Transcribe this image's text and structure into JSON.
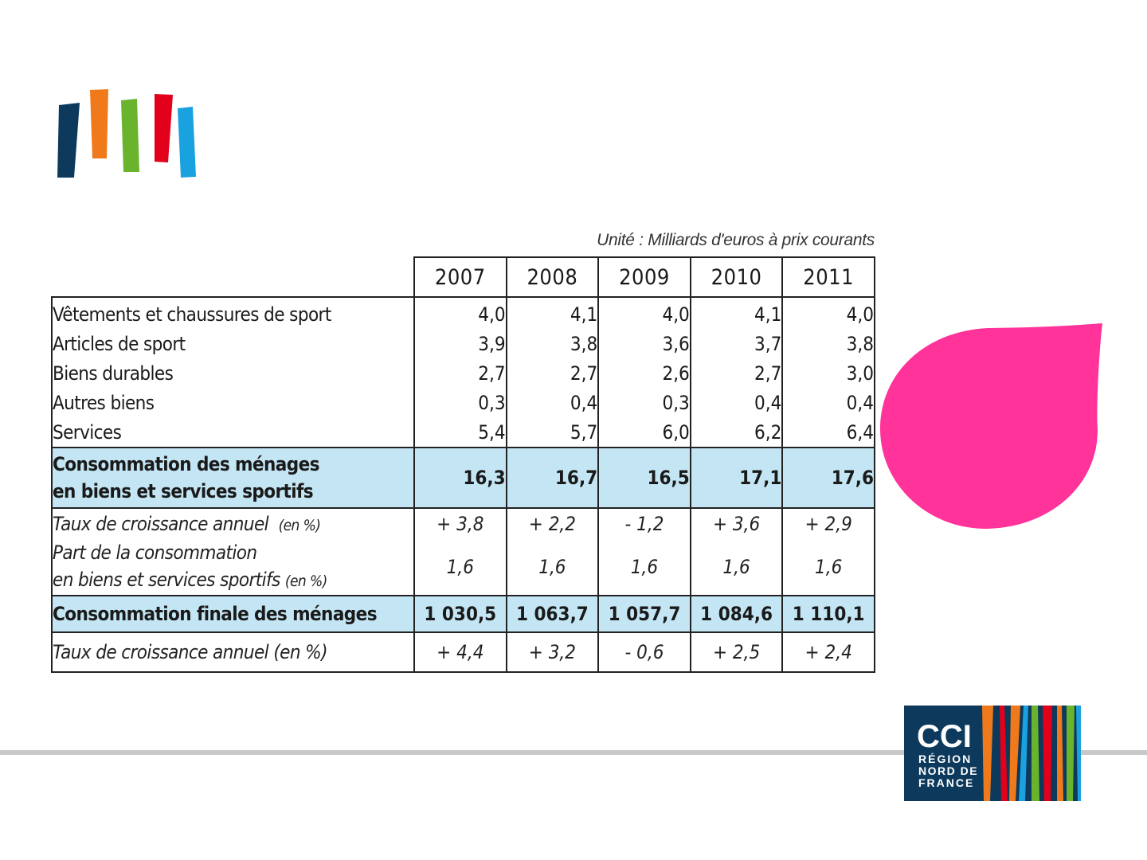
{
  "colors": {
    "logo_bars": [
      "#0d3a5c",
      "#f07a1b",
      "#6ab42d",
      "#e2001a",
      "#1aa1df"
    ],
    "petal": "#ff3399",
    "highlight_row": "#c4e6f4",
    "divider": "#c9c9c9",
    "cci_background": "#0d3a5c"
  },
  "cci_logo": {
    "line1": "CCI",
    "line2": "RÉGION",
    "line3": "NORD DE",
    "line4": "FRANCE"
  },
  "table": {
    "unit_note": "Unité  :  Milliards d'euros à prix courants",
    "years": [
      "2007",
      "2008",
      "2009",
      "2010",
      "2011"
    ],
    "items": [
      {
        "label": "Vêtements et chaussures de sport",
        "values": [
          "4,0",
          "4,1",
          "4,0",
          "4,1",
          "4,0"
        ]
      },
      {
        "label": "Articles de sport",
        "values": [
          "3,9",
          "3,8",
          "3,6",
          "3,7",
          "3,8"
        ]
      },
      {
        "label": "Biens durables",
        "values": [
          "2,7",
          "2,7",
          "2,6",
          "2,7",
          "3,0"
        ]
      },
      {
        "label": "Autres biens",
        "values": [
          "0,3",
          "0,4",
          "0,3",
          "0,4",
          "0,4"
        ]
      },
      {
        "label": "Services",
        "values": [
          "5,4",
          "5,7",
          "6,0",
          "6,2",
          "6,4"
        ]
      }
    ],
    "consumption_sport": {
      "label_line1": "Consommation des ménages",
      "label_line2": "en biens et services sportifs",
      "values": [
        "16,3",
        "16,7",
        "16,5",
        "17,1",
        "17,6"
      ]
    },
    "growth_sport": {
      "label": "Taux de croissance annuel",
      "unit": "(en %)",
      "values": [
        "+ 3,8",
        "+ 2,2",
        "- 1,2",
        "+ 3,6",
        "+ 2,9"
      ]
    },
    "share_sport": {
      "label_line1": "Part de la consommation",
      "label_line2": "en biens et services sportifs",
      "unit": "(en %)",
      "values": [
        "1,6",
        "1,6",
        "1,6",
        "1,6",
        "1,6"
      ]
    },
    "final_consumption": {
      "label": "Consommation finale des ménages",
      "values": [
        "1 030,5",
        "1 063,7",
        "1 057,7",
        "1 084,6",
        "1 110,1"
      ]
    },
    "growth_final": {
      "label": "Taux de croissance annuel",
      "unit": "(en %)",
      "values": [
        "+ 4,4",
        "+ 3,2",
        "- 0,6",
        "+ 2,5",
        "+ 2,4"
      ]
    }
  }
}
